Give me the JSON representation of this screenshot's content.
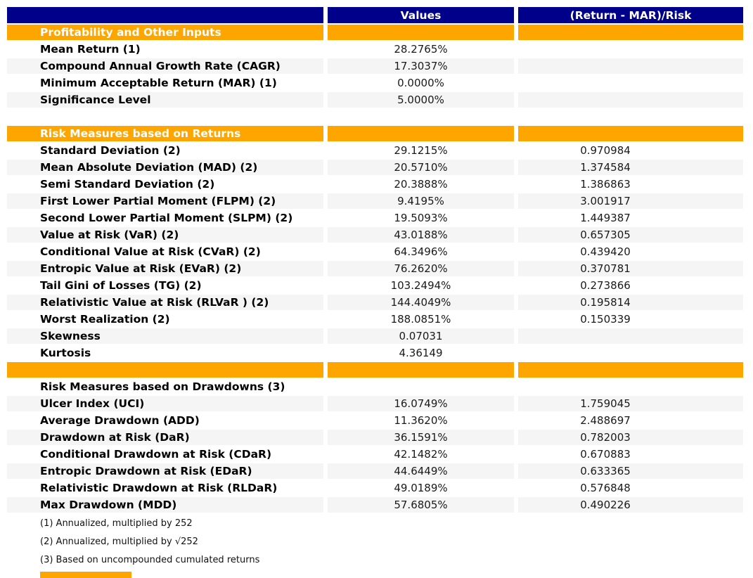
{
  "colors": {
    "header_bg": "#00008B",
    "header_text": "#ffffff",
    "section_bg": "#FFA500",
    "section_text": "#ffffff",
    "stripe_bg": "#F5F5F5",
    "row_bg": "#ffffff",
    "label_text": "#000000",
    "value_text": "#1a1a1a",
    "page_bg": "#ffffff"
  },
  "chart_data": {
    "type": "table",
    "columns": [
      "",
      "Values",
      "(Return - MAR)/Risk"
    ],
    "rows": [
      {
        "type": "section",
        "label": "Profitability and Other Inputs",
        "value": "",
        "ratio": ""
      },
      {
        "type": "data",
        "label": "Mean Return (1)",
        "value": "28.2765%",
        "ratio": ""
      },
      {
        "type": "data",
        "label": "Compound Annual Growth Rate (CAGR)",
        "value": "17.3037%",
        "ratio": ""
      },
      {
        "type": "data",
        "label": "Minimum Acceptable Return (MAR) (1)",
        "value": "0.0000%",
        "ratio": ""
      },
      {
        "type": "data",
        "label": "Significance Level",
        "value": "5.0000%",
        "ratio": ""
      },
      {
        "type": "spacer",
        "label": "",
        "value": "",
        "ratio": ""
      },
      {
        "type": "section",
        "label": "Risk Measures based on Returns",
        "value": "",
        "ratio": ""
      },
      {
        "type": "data",
        "label": "Standard Deviation (2)",
        "value": "29.1215%",
        "ratio": "0.970984"
      },
      {
        "type": "data",
        "label": "Mean Absolute Deviation (MAD) (2)",
        "value": "20.5710%",
        "ratio": "1.374584"
      },
      {
        "type": "data",
        "label": "Semi Standard Deviation (2)",
        "value": "20.3888%",
        "ratio": "1.386863"
      },
      {
        "type": "data",
        "label": "First Lower Partial Moment (FLPM) (2)",
        "value": "9.4195%",
        "ratio": "3.001917"
      },
      {
        "type": "data",
        "label": "Second Lower Partial Moment (SLPM) (2)",
        "value": "19.5093%",
        "ratio": "1.449387"
      },
      {
        "type": "data",
        "label": "Value at Risk (VaR) (2)",
        "value": "43.0188%",
        "ratio": "0.657305"
      },
      {
        "type": "data",
        "label": "Conditional Value at Risk (CVaR) (2)",
        "value": "64.3496%",
        "ratio": "0.439420"
      },
      {
        "type": "data",
        "label": "Entropic Value at Risk (EVaR) (2)",
        "value": "76.2620%",
        "ratio": "0.370781"
      },
      {
        "type": "data",
        "label": "Tail Gini of Losses (TG) (2)",
        "value": "103.2494%",
        "ratio": "0.273866"
      },
      {
        "type": "data",
        "label": "Relativistic Value at Risk (RLVaR ) (2)",
        "value": "144.4049%",
        "ratio": "0.195814"
      },
      {
        "type": "data",
        "label": "Worst Realization (2)",
        "value": "188.0851%",
        "ratio": "0.150339"
      },
      {
        "type": "data",
        "label": "Skewness",
        "value": "0.07031",
        "ratio": ""
      },
      {
        "type": "data",
        "label": "Kurtosis",
        "value": "4.36149",
        "ratio": ""
      },
      {
        "type": "section",
        "label": "",
        "value": "",
        "ratio": ""
      },
      {
        "type": "subheader",
        "label": "Risk Measures based on Drawdowns (3)",
        "value": "",
        "ratio": ""
      },
      {
        "type": "data",
        "label": "Ulcer Index (UCI)",
        "value": "16.0749%",
        "ratio": "1.759045"
      },
      {
        "type": "data",
        "label": "Average Drawdown (ADD)",
        "value": "11.3620%",
        "ratio": "2.488697"
      },
      {
        "type": "data",
        "label": "Drawdown at Risk (DaR)",
        "value": "36.1591%",
        "ratio": "0.782003"
      },
      {
        "type": "data",
        "label": "Conditional Drawdown at Risk (CDaR)",
        "value": "42.1482%",
        "ratio": "0.670883"
      },
      {
        "type": "data",
        "label": "Entropic Drawdown at Risk (EDaR)",
        "value": "44.6449%",
        "ratio": "0.633365"
      },
      {
        "type": "data",
        "label": "Relativistic Drawdown at Risk (RLDaR)",
        "value": "49.0189%",
        "ratio": "0.576848"
      },
      {
        "type": "data",
        "label": "Max Drawdown (MDD)",
        "value": "57.6805%",
        "ratio": "0.490226"
      }
    ],
    "footnotes": [
      "(1) Annualized, multiplied by 252",
      "(2) Annualized, multiplied by √252",
      "(3) Based on uncompounded cumulated returns"
    ]
  }
}
